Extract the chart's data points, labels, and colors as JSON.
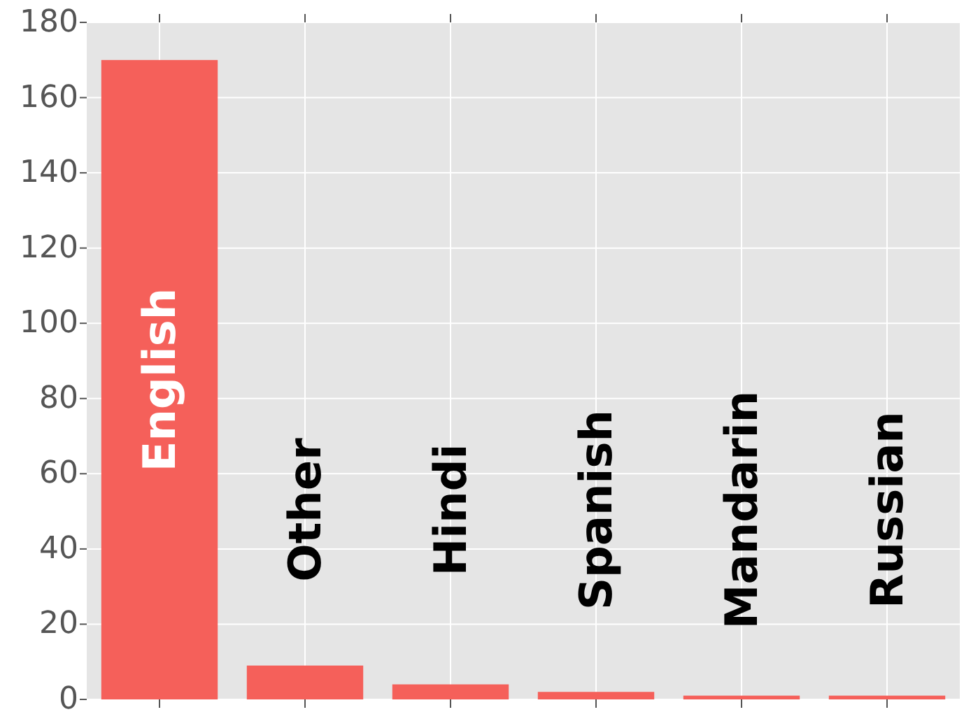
{
  "chart_data": {
    "type": "bar",
    "categories": [
      "English",
      "Other",
      "Hindi",
      "Spanish",
      "Mandarin",
      "Russian"
    ],
    "values": [
      170,
      9,
      4,
      2,
      1,
      1
    ],
    "color": "#f5605a",
    "ylim": [
      0,
      180
    ],
    "yticks": [
      0,
      20,
      40,
      60,
      80,
      100,
      120,
      140,
      160,
      180
    ],
    "grid": true
  }
}
